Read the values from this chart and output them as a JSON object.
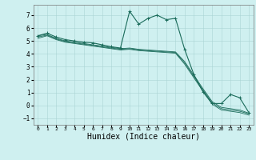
{
  "bg_color": "#cff0f0",
  "grid_color": "#aad4d4",
  "line_color": "#1a6b5a",
  "xlabel": "Humidex (Indice chaleur)",
  "xlabel_fontsize": 7,
  "ylim": [
    -1.5,
    7.8
  ],
  "xlim": [
    -0.5,
    23.5
  ],
  "yticks": [
    -1,
    0,
    1,
    2,
    3,
    4,
    5,
    6,
    7
  ],
  "xtick_labels": [
    "0",
    "1",
    "2",
    "3",
    "4",
    "5",
    "6",
    "7",
    "8",
    "9",
    "10",
    "11",
    "12",
    "13",
    "14",
    "15",
    "16",
    "17",
    "18",
    "19",
    "20",
    "21",
    "22",
    "23"
  ],
  "line1_x": [
    0,
    1,
    2,
    3,
    4,
    5,
    6,
    7,
    8,
    9,
    10,
    11,
    12,
    13,
    14,
    15,
    16,
    17,
    18,
    19,
    20,
    21,
    22,
    23
  ],
  "line1_y": [
    5.4,
    5.6,
    5.3,
    5.1,
    5.0,
    4.9,
    4.85,
    4.7,
    4.55,
    4.45,
    7.3,
    6.3,
    6.75,
    7.0,
    6.65,
    6.75,
    4.35,
    2.4,
    1.05,
    0.15,
    0.15,
    0.85,
    0.6,
    -0.55
  ],
  "line2_x": [
    0,
    1,
    2,
    3,
    4,
    5,
    6,
    7,
    8,
    9,
    10,
    11,
    12,
    13,
    14,
    15,
    16,
    17,
    18,
    19,
    20,
    21,
    22,
    23
  ],
  "line2_y": [
    5.4,
    5.5,
    5.2,
    5.0,
    4.9,
    4.8,
    4.7,
    4.6,
    4.5,
    4.4,
    4.45,
    4.35,
    4.3,
    4.25,
    4.2,
    4.15,
    3.4,
    2.35,
    1.3,
    0.3,
    -0.15,
    -0.25,
    -0.35,
    -0.6
  ],
  "line3_x": [
    0,
    1,
    2,
    3,
    4,
    5,
    6,
    7,
    8,
    9,
    10,
    11,
    12,
    13,
    14,
    15,
    16,
    17,
    18,
    19,
    20,
    21,
    22,
    23
  ],
  "line3_y": [
    5.3,
    5.45,
    5.15,
    4.95,
    4.85,
    4.75,
    4.65,
    4.55,
    4.45,
    4.35,
    4.4,
    4.3,
    4.25,
    4.2,
    4.15,
    4.1,
    3.3,
    2.25,
    1.2,
    0.2,
    -0.25,
    -0.35,
    -0.45,
    -0.65
  ],
  "line4_x": [
    0,
    1,
    2,
    3,
    4,
    5,
    6,
    7,
    8,
    9,
    10,
    11,
    12,
    13,
    14,
    15,
    16,
    17,
    18,
    19,
    20,
    21,
    22,
    23
  ],
  "line4_y": [
    5.2,
    5.4,
    5.1,
    4.9,
    4.8,
    4.7,
    4.6,
    4.5,
    4.4,
    4.3,
    4.35,
    4.25,
    4.2,
    4.15,
    4.1,
    4.05,
    3.2,
    2.15,
    1.1,
    0.1,
    -0.35,
    -0.45,
    -0.55,
    -0.75
  ]
}
